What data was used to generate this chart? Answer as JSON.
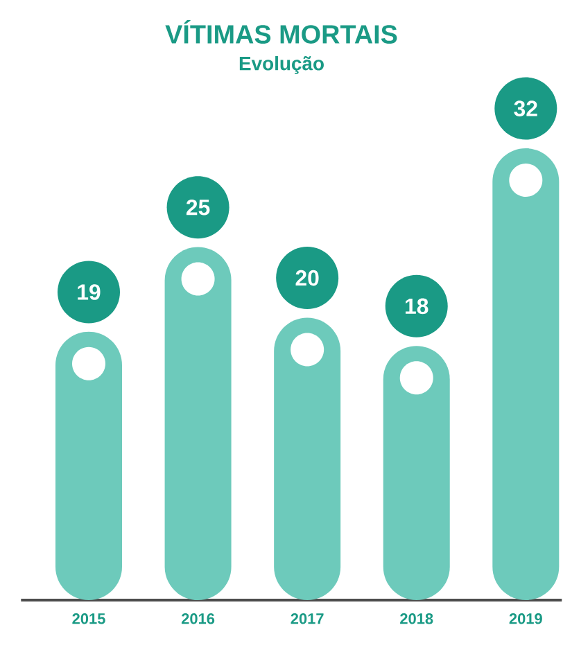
{
  "chart_data": {
    "type": "bar",
    "title": "VÍTIMAS MORTAIS",
    "subtitle": "Evolução",
    "categories": [
      "2015",
      "2016",
      "2017",
      "2018",
      "2019"
    ],
    "values": [
      19,
      25,
      20,
      18,
      32
    ],
    "color": "#6dcabb",
    "data_labels": true
  }
}
